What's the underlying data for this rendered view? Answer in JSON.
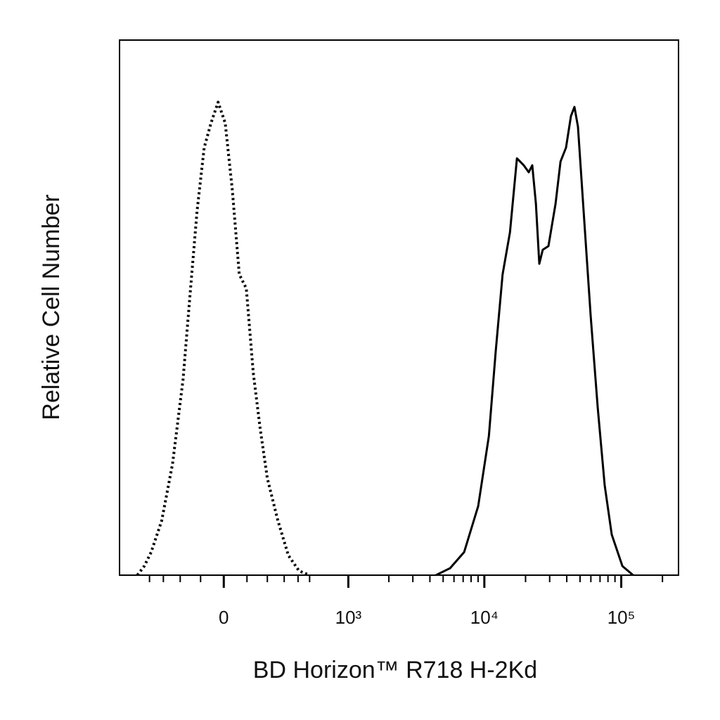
{
  "chart_data": {
    "type": "histogram-overlay",
    "xlabel": "BD Horizon™ R718 H-2Kd",
    "ylabel": "Relative Cell Number",
    "xscale": "biexponential",
    "xlim": [
      -700,
      262000
    ],
    "ylim": [
      0,
      100
    ],
    "xticks": [
      0,
      {
        "value": 1000,
        "label": "10³"
      },
      {
        "value": 10000,
        "label": "10⁴"
      },
      {
        "value": 100000,
        "label": "10⁵"
      }
    ],
    "xminorticks": [
      -400,
      -300,
      -200,
      -100,
      100,
      200,
      300,
      400,
      500,
      2000,
      3000,
      4000,
      5000,
      6000,
      7000,
      8000,
      9000,
      20000,
      30000,
      40000,
      50000,
      60000,
      70000,
      80000,
      90000,
      200000
    ],
    "series": [
      {
        "color": "#000000",
        "style": "dotted",
        "x": [
          -505,
          -443,
          -387,
          -311,
          -243,
          -185,
          -150,
          -116,
          -84,
          -54,
          -24,
          6,
          36,
          66,
          97,
          129,
          163,
          200,
          260,
          328,
          408,
          498
        ],
        "values": [
          0,
          1.7,
          4.3,
          10.2,
          20.8,
          36.5,
          52.3,
          68.1,
          79.9,
          84.5,
          88.4,
          84.5,
          72.0,
          56.2,
          53.6,
          37.8,
          27.3,
          18.1,
          10.2,
          3.7,
          0.8,
          0
        ]
      },
      {
        "color": "#000000",
        "style": "solid",
        "x": [
          4430,
          5620,
          7120,
          9020,
          10800,
          12100,
          13600,
          15400,
          17300,
          19400,
          21100,
          22400,
          23800,
          25200,
          26700,
          29400,
          33100,
          36000,
          39500,
          42900,
          45500,
          48300,
          53100,
          59800,
          67300,
          75700,
          85200,
          102000,
          122000
        ],
        "values": [
          0,
          1.3,
          4.3,
          12.9,
          26.0,
          41.8,
          56.2,
          64.1,
          77.9,
          76.6,
          75.3,
          76.6,
          69.4,
          58.2,
          60.8,
          61.5,
          69.4,
          77.3,
          79.9,
          85.8,
          87.5,
          83.8,
          68.1,
          48.4,
          31.3,
          16.8,
          7.6,
          1.7,
          0
        ]
      }
    ]
  }
}
